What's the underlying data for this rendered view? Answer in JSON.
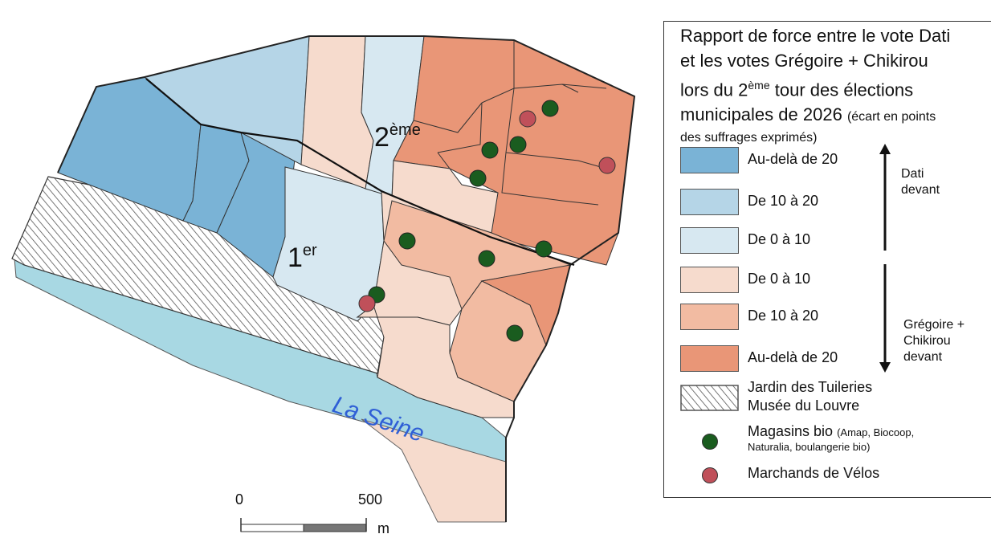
{
  "map": {
    "label_1er": {
      "main": "1",
      "sup": "er"
    },
    "label_2eme": {
      "main": "2",
      "sup": "ème"
    },
    "river_label": "La Seine",
    "scale": {
      "zero": "0",
      "end": "500",
      "unit": "m"
    }
  },
  "legend": {
    "title_line1": "Rapport de force entre le vote Dati",
    "title_line2": "et les votes Grégoire + Chikirou",
    "title_line3_pre": "lors du 2",
    "title_line3_sup": "ème",
    "title_line3_post": " tour des élections",
    "title_line4": "municipales de 2026",
    "title_line4_small": "(écart en points",
    "title_line5_small": "des suffrages exprimés)",
    "classes": [
      {
        "label": "Au-delà de 20",
        "color": "#7ab3d6"
      },
      {
        "label": "De 10 à 20",
        "color": "#b5d5e7"
      },
      {
        "label": "De 0 à 10",
        "color": "#d7e8f1"
      },
      {
        "label": "De 0 à 10",
        "color": "#f6dbcd"
      },
      {
        "label": "De 10 à 20",
        "color": "#f2bba2"
      },
      {
        "label": "Au-delà de 20",
        "color": "#e99677"
      }
    ],
    "dati_label_1": "Dati",
    "dati_label_2": "devant",
    "gc_label_1": "Grégoire +",
    "gc_label_2": "Chikirou",
    "gc_label_3": "devant",
    "hatch_label_1": "Jardin des Tuileries",
    "hatch_label_2": "Musée du Louvre",
    "bio_label": "Magasins bio",
    "bio_label_small_1": "(Amap, Biocoop,",
    "bio_label_small_2": "Naturalia, boulangerie bio)",
    "velo_label": "Marchands de Vélos",
    "bio_color": "#1a5c1f",
    "velo_color": "#c0505a"
  }
}
